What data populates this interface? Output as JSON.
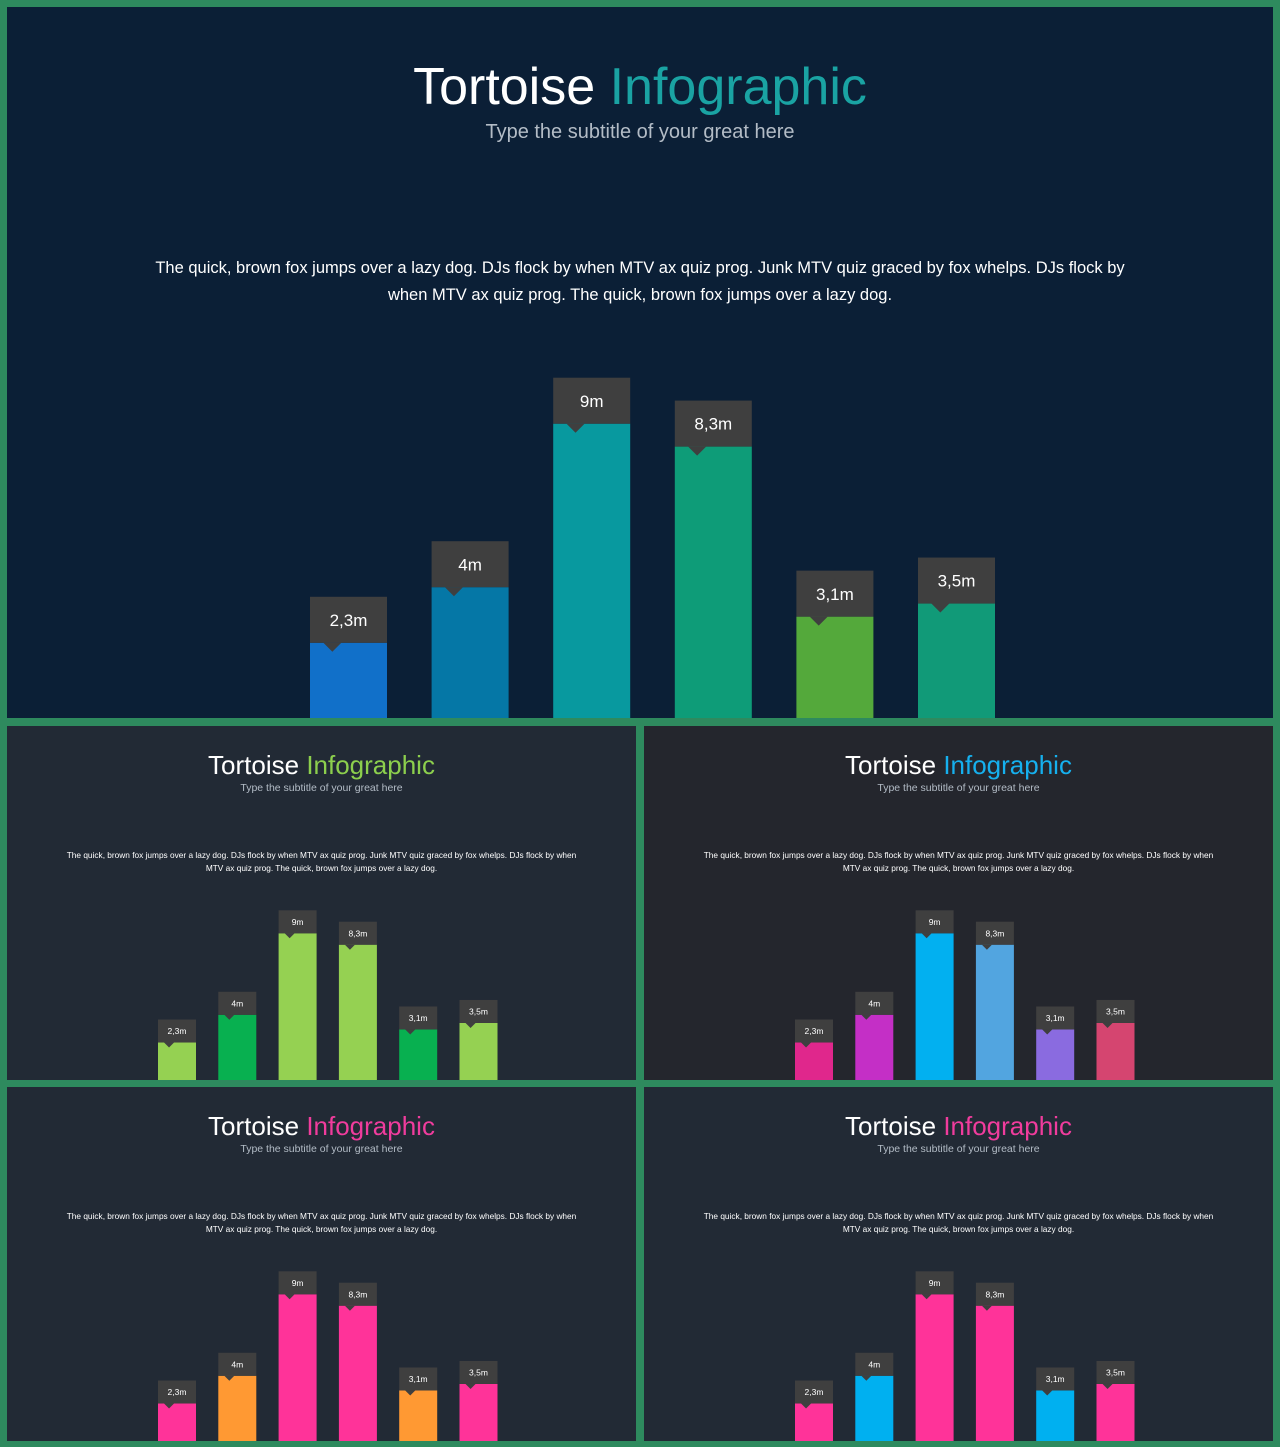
{
  "slides": [
    {
      "title_plain": "Tortoise",
      "title_accent": "Infographic",
      "subtitle": "Type the subtitle of your great here",
      "body": "The quick, brown fox jumps over a lazy dog. DJs flock by when MTV ax quiz prog. Junk MTV quiz graced by fox whelps. DJs flock by when MTV ax quiz prog. The quick, brown fox jumps over a lazy dog.",
      "accent_color": "#1aa3a3",
      "bar_colors": [
        "#1170c9",
        "#0577a6",
        "#08999f",
        "#0e9c78",
        "#54a93b",
        "#119a78"
      ]
    },
    {
      "title_plain": "Tortoise",
      "title_accent": "Infographic",
      "subtitle": "Type the subtitle of your great here",
      "body": "The quick, brown fox jumps over a lazy dog. DJs flock by when MTV ax quiz prog. Junk MTV quiz graced by fox whelps. DJs flock by when MTV ax quiz prog. The quick, brown fox jumps over a lazy dog.",
      "accent_color": "#8ccf4d",
      "bar_colors": [
        "#95d152",
        "#08b050",
        "#95d152",
        "#95d152",
        "#08b050",
        "#95d152"
      ]
    },
    {
      "title_plain": "Tortoise",
      "title_accent": "Infographic",
      "subtitle": "Type the subtitle of your great here",
      "body": "The quick, brown fox jumps over a lazy dog. DJs flock by when MTV ax quiz prog. Junk MTV quiz graced by fox whelps. DJs flock by when MTV ax quiz prog. The quick, brown fox jumps over a lazy dog.",
      "accent_color": "#16b0ee",
      "bar_colors": [
        "#e0278c",
        "#c42fc6",
        "#02b0f0",
        "#52a5e0",
        "#8a6be0",
        "#d54570"
      ]
    },
    {
      "title_plain": "Tortoise",
      "title_accent": "Infographic",
      "subtitle": "Type the subtitle of your great here",
      "body": "The quick, brown fox jumps over a lazy dog. DJs flock by when MTV ax quiz prog. Junk MTV quiz graced by fox whelps. DJs flock by when MTV ax quiz prog. The quick, brown fox jumps over a lazy dog.",
      "accent_color": "#f03c9d",
      "bar_colors": [
        "#ff3399",
        "#ff9933",
        "#ff3399",
        "#ff3399",
        "#ff9933",
        "#ff3399"
      ]
    },
    {
      "title_plain": "Tortoise",
      "title_accent": "Infographic",
      "subtitle": "Type the subtitle of your great here",
      "body": "The quick, brown fox jumps over a lazy dog. DJs flock by when MTV ax quiz prog. Junk MTV quiz graced by fox whelps. DJs flock by when MTV ax quiz prog. The quick, brown fox jumps over a lazy dog.",
      "accent_color": "#f03c9d",
      "bar_colors": [
        "#ff3399",
        "#00b0f0",
        "#ff3399",
        "#ff3399",
        "#00b0f0",
        "#ff3399"
      ]
    }
  ],
  "label_box_color": "#3f3f3f",
  "chart_data": [
    {
      "type": "bar",
      "categories": [
        "",
        "",
        "",
        "",
        "",
        ""
      ],
      "values": [
        2.3,
        4,
        9,
        8.3,
        3.1,
        3.5
      ],
      "data_labels": [
        "2,3m",
        "4m",
        "9m",
        "8,3m",
        "3,1m",
        "3,5m"
      ],
      "title": "",
      "xlabel": "",
      "ylabel": "",
      "ylim": [
        0,
        10
      ],
      "grid": false,
      "legend": "none"
    },
    {
      "type": "bar",
      "categories": [
        "",
        "",
        "",
        "",
        "",
        ""
      ],
      "values": [
        2.3,
        4,
        9,
        8.3,
        3.1,
        3.5
      ],
      "data_labels": [
        "2,3m",
        "4m",
        "9m",
        "8,3m",
        "3,1m",
        "3,5m"
      ],
      "title": "",
      "xlabel": "",
      "ylabel": "",
      "ylim": [
        0,
        10
      ],
      "grid": false,
      "legend": "none"
    },
    {
      "type": "bar",
      "categories": [
        "",
        "",
        "",
        "",
        "",
        ""
      ],
      "values": [
        2.3,
        4,
        9,
        8.3,
        3.1,
        3.5
      ],
      "data_labels": [
        "2,3m",
        "4m",
        "9m",
        "8,3m",
        "3,1m",
        "3,5m"
      ],
      "title": "",
      "xlabel": "",
      "ylabel": "",
      "ylim": [
        0,
        10
      ],
      "grid": false,
      "legend": "none"
    },
    {
      "type": "bar",
      "categories": [
        "",
        "",
        "",
        "",
        "",
        ""
      ],
      "values": [
        2.3,
        4,
        9,
        8.3,
        3.1,
        3.5
      ],
      "data_labels": [
        "2,3m",
        "4m",
        "9m",
        "8,3m",
        "3,1m",
        "3,5m"
      ],
      "title": "",
      "xlabel": "",
      "ylabel": "",
      "ylim": [
        0,
        10
      ],
      "grid": false,
      "legend": "none"
    },
    {
      "type": "bar",
      "categories": [
        "",
        "",
        "",
        "",
        "",
        ""
      ],
      "values": [
        2.3,
        4,
        9,
        8.3,
        3.1,
        3.5
      ],
      "data_labels": [
        "2,3m",
        "4m",
        "9m",
        "8,3m",
        "3,1m",
        "3,5m"
      ],
      "title": "",
      "xlabel": "",
      "ylabel": "",
      "ylim": [
        0,
        10
      ],
      "grid": false,
      "legend": "none"
    }
  ]
}
